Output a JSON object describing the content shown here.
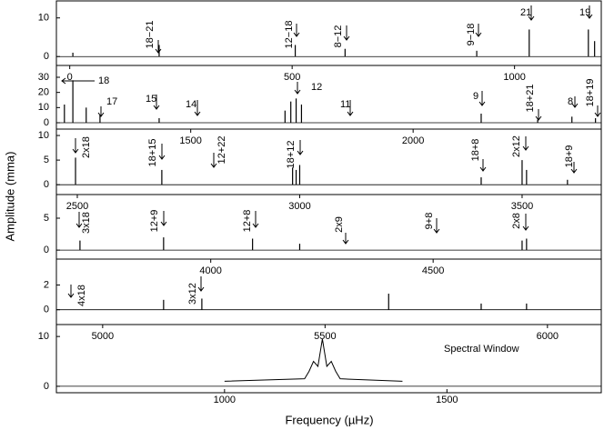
{
  "axis_labels": {
    "y": "Amplitude (mma)",
    "x": "Frequency (µHz)"
  },
  "chart_data": [
    {
      "type": "stem",
      "xlim": [
        -30,
        1195
      ],
      "ylim": [
        -2.3,
        14.4
      ],
      "yticks": [
        0,
        10
      ],
      "x": [
        7,
        201,
        507,
        619,
        915,
        1033,
        1166,
        1180
      ],
      "values": [
        1,
        3,
        3,
        2,
        1.5,
        7,
        7,
        4
      ],
      "annotations": [
        "18−21",
        "12−18",
        "8−12",
        "9−18",
        "21",
        "19"
      ]
    },
    {
      "type": "stem",
      "xlim": [
        -30,
        1195
      ],
      "ylim": [
        -4.2,
        37.8
      ],
      "yticks": [
        0,
        10,
        20,
        30
      ],
      "xticks": [
        0,
        500,
        1000
      ],
      "x": [
        -12,
        7,
        37,
        68,
        201,
        484,
        497,
        509,
        521,
        925,
        1052,
        1129,
        1182
      ],
      "values": [
        12,
        28,
        10,
        5,
        3,
        8,
        14,
        16,
        12,
        6,
        2,
        4,
        3
      ],
      "annotations": [
        "18",
        "17",
        "15",
        "14",
        "12",
        "11",
        "9",
        "18+21",
        "8",
        "18+19"
      ]
    },
    {
      "type": "stem",
      "xlim": [
        1198,
        2423
      ],
      "ylim": [
        -2,
        11.3
      ],
      "yticks": [
        0,
        5,
        10
      ],
      "xticks": [
        1500,
        2000
      ],
      "x": [
        1241,
        1435,
        1729,
        1737,
        1745,
        2153,
        2245,
        2255,
        2347
      ],
      "values": [
        5.5,
        3,
        3.5,
        3,
        4,
        1.5,
        5,
        3,
        1
      ],
      "annotations": [
        "2x18",
        "18+15",
        "12+22",
        "18+12",
        "18+8",
        "2x12",
        "18+9"
      ]
    },
    {
      "type": "stem",
      "xlim": [
        2453,
        3678
      ],
      "ylim": [
        -1.4,
        8.7
      ],
      "yticks": [
        0,
        5
      ],
      "xticks": [
        2500,
        3000,
        3500
      ],
      "x": [
        2506,
        2694,
        2894,
        3000,
        3500,
        3510
      ],
      "values": [
        1.5,
        2,
        1.8,
        1,
        1.5,
        1.8
      ],
      "annotations": [
        "3x18",
        "12+9",
        "12+8",
        "2x9",
        "9+8",
        "2x8"
      ]
    },
    {
      "type": "stem",
      "xlim": [
        3653,
        4878
      ],
      "ylim": [
        -1.2,
        4.1
      ],
      "yticks": [
        0,
        2
      ],
      "xticks": [
        4000,
        4500
      ],
      "x": [
        3894,
        3980,
        4400,
        4608,
        4710
      ],
      "values": [
        0.8,
        0.9,
        1.3,
        0.5,
        0.5
      ],
      "annotations": [
        "4x18",
        "3x12"
      ]
    },
    {
      "type": "stem",
      "xlim": [
        4896,
        6121
      ],
      "ylim": [
        -1.3,
        12.4
      ],
      "yticks": [
        0,
        10
      ],
      "xticks": [
        5000,
        5500,
        6000
      ],
      "x": [],
      "values": [],
      "annotations": [],
      "window": {
        "type": "line",
        "label": "Spectral Window",
        "xlim": [
          622,
          1847
        ],
        "xticks": [
          1000,
          1500
        ],
        "x": [
          1000,
          1180,
          1190,
          1200,
          1210,
          1220,
          1230,
          1240,
          1250,
          1260,
          1400
        ],
        "values": [
          1,
          1.5,
          3,
          5,
          4,
          9.5,
          4,
          5,
          3,
          1.5,
          1
        ]
      }
    }
  ]
}
